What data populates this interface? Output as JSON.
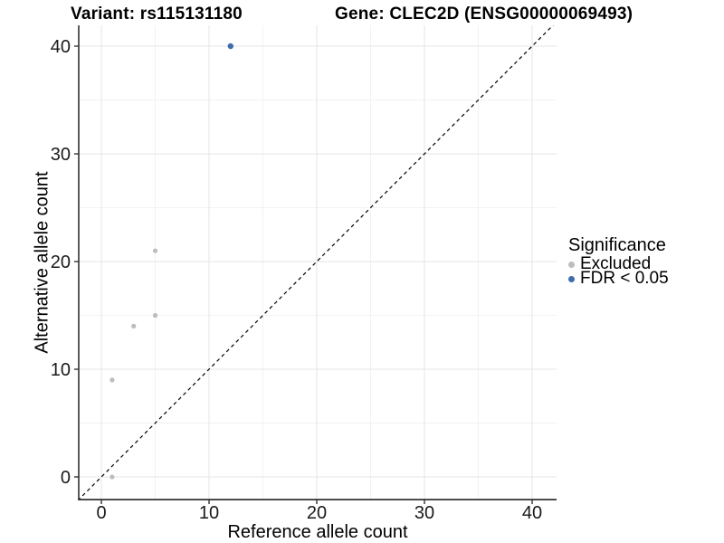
{
  "chart_data": {
    "type": "scatter",
    "title_left": "Variant: rs115131180",
    "title_right": "Gene: CLEC2D (ENSG00000069493)",
    "xlabel": "Reference allele count",
    "ylabel": "Alternative allele count",
    "xlim": [
      -2,
      42
    ],
    "ylim": [
      -2,
      42
    ],
    "xticks": [
      0,
      10,
      20,
      30,
      40
    ],
    "yticks": [
      0,
      10,
      20,
      30,
      40
    ],
    "minor_ticks": [
      5,
      15,
      25,
      35
    ],
    "grid": true,
    "identity_line": {
      "slope": 1,
      "intercept": 0,
      "style": "dashed",
      "color": "#000000"
    },
    "legend": {
      "title": "Significance",
      "position": "right",
      "items": [
        {
          "label": "Excluded",
          "color": "#bdbdbd"
        },
        {
          "label": "FDR < 0.05",
          "color": "#3e6cad"
        }
      ]
    },
    "series": [
      {
        "name": "Excluded",
        "color": "#bdbdbd",
        "radius": 2.6,
        "points": [
          [
            1,
            0
          ],
          [
            1,
            9
          ],
          [
            3,
            14
          ],
          [
            5,
            15
          ],
          [
            5,
            21
          ]
        ]
      },
      {
        "name": "FDR < 0.05",
        "color": "#3e6cad",
        "radius": 3.2,
        "points": [
          [
            12,
            40
          ]
        ]
      }
    ]
  }
}
